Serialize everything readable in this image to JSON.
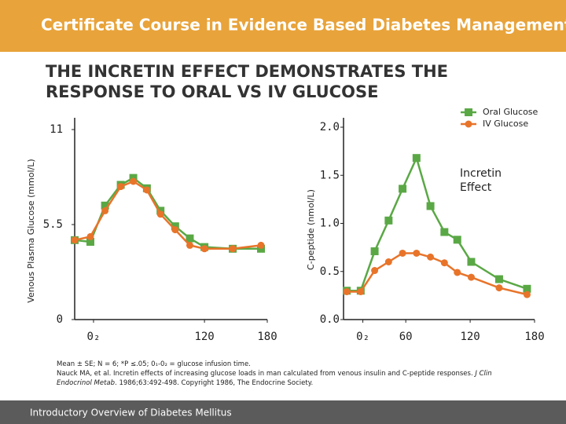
{
  "header": {
    "title": "Certificate Course in Evidence Based Diabetes Management"
  },
  "slide_title": "THE INCRETIN EFFECT DEMONSTRATES THE RESPONSE TO ORAL VS IV GLUCOSE",
  "chart_data": [
    {
      "type": "line",
      "y_label": "Venous Plasma Glucose (mmol/L)",
      "ylim": [
        0,
        11
      ],
      "yticks": [
        0,
        5.5,
        11
      ],
      "xlim": [
        -4,
        180
      ],
      "xticks": [
        {
          "value": 14,
          "label": "0₂"
        },
        120,
        180
      ],
      "series": [
        {
          "marker": "square",
          "color": "#5aa845",
          "x": [
            -4,
            11,
            25,
            40,
            52,
            65,
            78,
            92,
            106,
            120,
            147,
            174
          ],
          "values": [
            4.6,
            4.5,
            6.6,
            7.8,
            8.2,
            7.6,
            6.3,
            5.4,
            4.7,
            4.2,
            4.1,
            4.1
          ]
        },
        {
          "marker": "circle",
          "color": "#e8742a",
          "x": [
            -4,
            11,
            25,
            40,
            52,
            65,
            78,
            92,
            106,
            120,
            147,
            174
          ],
          "values": [
            4.6,
            4.8,
            6.3,
            7.7,
            8.0,
            7.5,
            6.1,
            5.2,
            4.3,
            4.1,
            4.1,
            4.3
          ]
        }
      ]
    },
    {
      "type": "line",
      "y_label": "C-peptide (nmol/L)",
      "ylim": [
        0,
        2
      ],
      "yticks": [
        {
          "value": 0,
          "label": "0.0"
        },
        0.5,
        {
          "value": 1,
          "label": "1.0"
        },
        1.5,
        {
          "value": 2,
          "label": "2.0"
        }
      ],
      "xlim": [
        2,
        180
      ],
      "xticks": [
        {
          "value": 20,
          "label": "0₂"
        },
        60,
        120,
        180
      ],
      "annotation": "Incretin Effect",
      "series": [
        {
          "name": "Oral Glucose",
          "marker": "square",
          "color": "#5aa845",
          "x": [
            5,
            18,
            31,
            44,
            57,
            70,
            83,
            96,
            108,
            121,
            147,
            173
          ],
          "values": [
            0.3,
            0.3,
            0.71,
            1.03,
            1.36,
            1.68,
            1.18,
            0.91,
            0.83,
            0.6,
            0.42,
            0.32
          ]
        },
        {
          "name": "IV Glucose",
          "marker": "circle",
          "color": "#e8742a",
          "x": [
            5,
            18,
            31,
            44,
            57,
            70,
            83,
            96,
            108,
            121,
            147,
            173
          ],
          "values": [
            0.29,
            0.29,
            0.51,
            0.6,
            0.69,
            0.69,
            0.65,
            0.59,
            0.49,
            0.44,
            0.33,
            0.26
          ]
        }
      ]
    }
  ],
  "footnote": {
    "line1": "Mean ± SE; N = 6; *P ≤.05; 0₁-0₂ = glucose infusion time.",
    "citation": [
      "Nauck MA, et al. Incretin effects of increasing glucose loads in man calculated from venous insulin and C-peptide responses. ",
      "J Clin Endocrinol Metab",
      ". 1986;63:492-498. Copyright 1986, The Endocrine Society."
    ]
  },
  "footer": {
    "title": "Introductory Overview of Diabetes Mellitus"
  }
}
